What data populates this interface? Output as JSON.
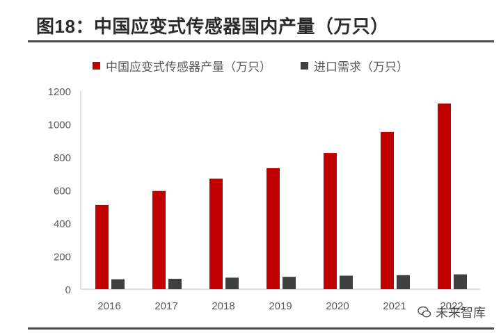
{
  "title": "图18：中国应变式传感器国内产量（万只）",
  "watermark": "未来智库",
  "colors": {
    "production": "#c00000",
    "import": "#404040",
    "axis": "#595959",
    "title": "#2b2b2b"
  },
  "chart_data": {
    "type": "bar",
    "categories": [
      "2016",
      "2017",
      "2018",
      "2019",
      "2020",
      "2021",
      "2022"
    ],
    "series": [
      {
        "name": "中国应变式传感器产量（万只）",
        "values": [
          510,
          595,
          670,
          733,
          825,
          952,
          1125
        ]
      },
      {
        "name": "进口需求（万只）",
        "values": [
          60,
          63,
          70,
          75,
          82,
          85,
          90
        ]
      }
    ],
    "yticks": [
      "0",
      "200",
      "400",
      "600",
      "800",
      "1000",
      "1200"
    ],
    "ylim": [
      0,
      1200
    ],
    "legend": "top-center",
    "grid": false
  }
}
